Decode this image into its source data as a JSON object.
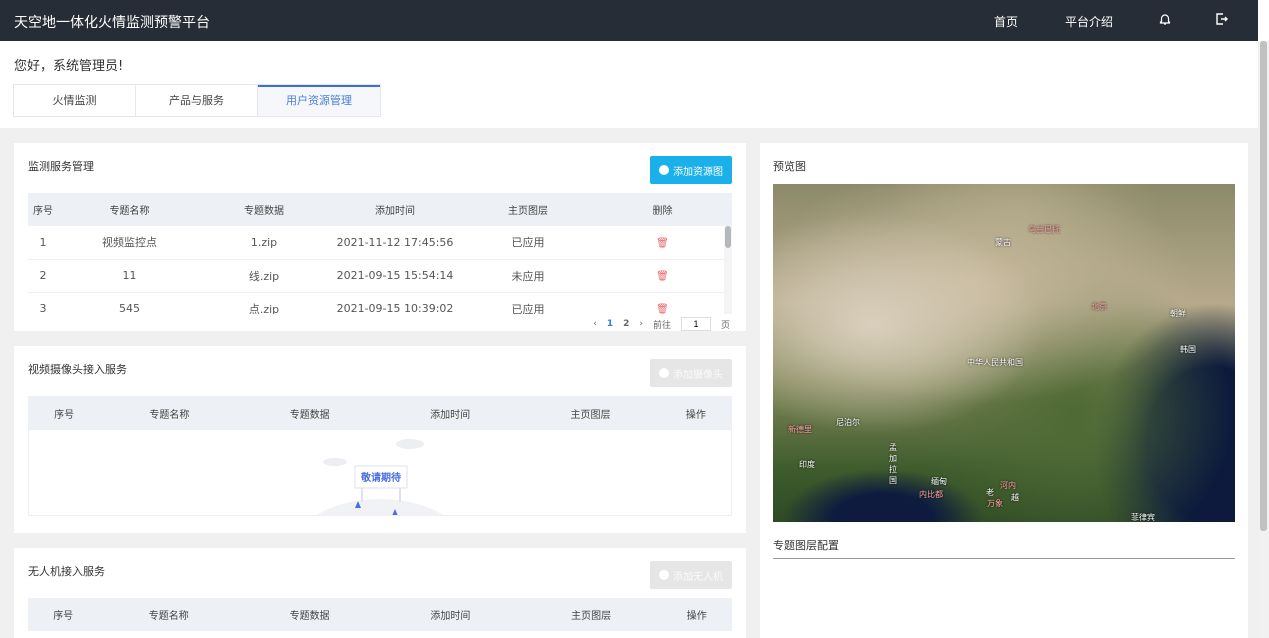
{
  "header": {
    "title": "天空地一体化火情监测预警平台",
    "nav": [
      "首页",
      "平台介绍"
    ],
    "icons": [
      "bell-icon",
      "logout-icon"
    ]
  },
  "greeting": "您好，系统管理员!",
  "tabs": [
    {
      "label": "火情监测"
    },
    {
      "label": "产品与服务"
    },
    {
      "label": "用户资源管理",
      "active": true
    }
  ],
  "monitor": {
    "title": "监测服务管理",
    "add_label": "添加资源图",
    "accent": "#1ab0ea",
    "columns": [
      "序号",
      "专题名称",
      "专题数据",
      "添加时间",
      "主页图层",
      "删除"
    ],
    "rows": [
      [
        "1",
        "视频监控点",
        "1.zip",
        "2021-11-12 17:45:56",
        "已应用"
      ],
      [
        "2",
        "11",
        "线.zip",
        "2021-09-15 15:54:14",
        "未应用"
      ],
      [
        "3",
        "545",
        "点.zip",
        "2021-09-15 10:39:02",
        "已应用"
      ]
    ],
    "pager": {
      "pages": [
        "1",
        "2"
      ],
      "current": "1",
      "goto_label": "前往",
      "goto_value": "1",
      "page_unit": "页"
    }
  },
  "camera": {
    "title": "视频摄像头接入服务",
    "add_label": "添加摄像头",
    "columns": [
      "序号",
      "专题名称",
      "专题数据",
      "添加时间",
      "主页图层",
      "操作"
    ],
    "empty_text": "敬请期待"
  },
  "drone": {
    "title": "无人机接入服务",
    "add_label": "添加无人机",
    "columns": [
      "序号",
      "专题名称",
      "专题数据",
      "添加时间",
      "主页图层",
      "操作"
    ]
  },
  "preview": {
    "title": "预览图",
    "map_labels": [
      "乌兰巴托",
      "蒙古",
      "北京",
      "朝鲜",
      "韩国",
      "中华人民共和国",
      "尼泊尔",
      "新德里",
      "印度",
      "孟加拉国",
      "缅甸",
      "内比都",
      "河内",
      "老",
      "万象",
      "越",
      "菲律宾"
    ],
    "config_title": "专题图层配置"
  }
}
